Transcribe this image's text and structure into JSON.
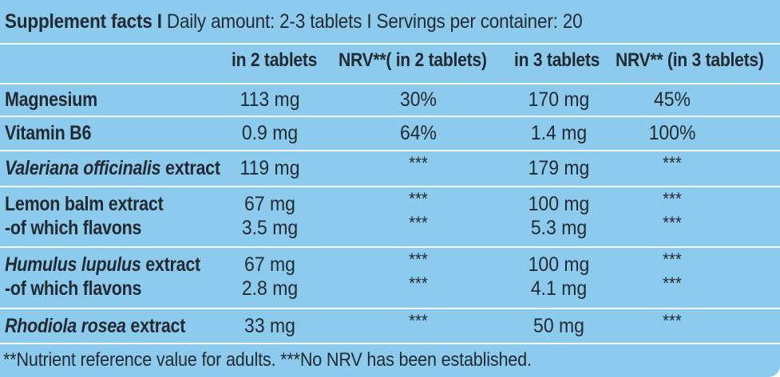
{
  "header": {
    "title": "Supplement facts",
    "sep": " I ",
    "daily_amount": "Daily amount: 2-3 tablets",
    "servings": "Servings per container: 20"
  },
  "columns": [
    "in 2 tablets",
    "NRV**( in 2 tablets)",
    "in 3 tablets",
    "NRV** (in 3 tablets)"
  ],
  "rows": [
    {
      "name_italic": "",
      "name_regular": "Magnesium",
      "sub_name": "",
      "v1": "113 mg",
      "v2": "30%",
      "v3": "170 mg",
      "v4": "45%",
      "s1": "",
      "s2": "",
      "s3": "",
      "s4": ""
    },
    {
      "name_italic": "",
      "name_regular": "Vitamin B6",
      "sub_name": "",
      "v1": "0.9 mg",
      "v2": "64%",
      "v3": "1.4 mg",
      "v4": "100%",
      "s1": "",
      "s2": "",
      "s3": "",
      "s4": ""
    },
    {
      "name_italic": "Valeriana officinalis",
      "name_regular": " extract",
      "sub_name": "",
      "v1": "119 mg",
      "v2": "***",
      "v3": "179 mg",
      "v4": "***",
      "s1": "",
      "s2": "",
      "s3": "",
      "s4": ""
    },
    {
      "name_italic": "",
      "name_regular": "Lemon balm extract",
      "sub_name": "-of which flavons",
      "v1": "67 mg",
      "v2": "***",
      "v3": "100 mg",
      "v4": "***",
      "s1": "3.5 mg",
      "s2": "***",
      "s3": "5.3 mg",
      "s4": "***"
    },
    {
      "name_italic": "Humulus lupulus",
      "name_regular": " extract",
      "sub_name": "-of which flavons",
      "v1": "67 mg",
      "v2": "***",
      "v3": "100 mg",
      "v4": "***",
      "s1": "2.8 mg",
      "s2": "***",
      "s3": "4.1 mg",
      "s4": "***"
    },
    {
      "name_italic": "Rhodiola rosea",
      "name_regular": " extract",
      "sub_name": "",
      "v1": "33 mg",
      "v2": "***",
      "v3": "50 mg",
      "v4": "***",
      "s1": "",
      "s2": "",
      "s3": "",
      "s4": ""
    }
  ],
  "footnote": "**Nutrient reference value for adults. ***No NRV has been established.",
  "colors": {
    "background": "#8ccbee",
    "rule": "#f4f8fb",
    "text": "#232a30"
  }
}
